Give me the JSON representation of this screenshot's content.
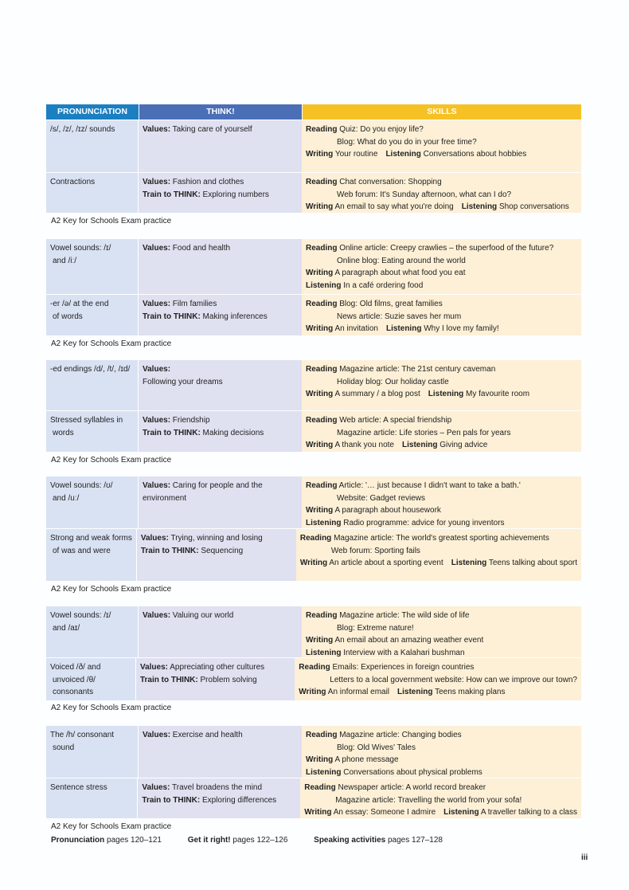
{
  "header": {
    "pronunciation": "PRONUNCIATION",
    "think": "THINK!",
    "skills": "SKILLS",
    "colors": {
      "pronunciation": "#1b7fc2",
      "think": "#4b6fb6",
      "skills": "#f5c125"
    }
  },
  "units": [
    {
      "rows": [
        {
          "pron": [
            "/s/, /z/, /ɪz/ sounds"
          ],
          "think": [
            [
              {
                "b": "Values:",
                "t": " Taking care of yourself"
              }
            ]
          ],
          "skills": [
            {
              "s": [
                {
                  "b": "Reading",
                  "t": " Quiz: Do you enjoy life?"
                }
              ]
            },
            {
              "ind": true,
              "s": [
                {
                  "t": "Blog: What do you do in your free time?"
                }
              ]
            },
            {
              "s": [
                {
                  "b": "Writing",
                  "t": " Your routine"
                },
                {
                  "b": "Listening",
                  "t": " Conversations about hobbies"
                }
              ]
            }
          ]
        },
        {
          "pron": [
            "Contractions"
          ],
          "think": [
            [
              {
                "b": "Values:",
                "t": " Fashion and clothes"
              }
            ],
            [
              {
                "b": "Train to THINK:",
                "t": " Exploring numbers"
              }
            ]
          ],
          "skills": [
            {
              "s": [
                {
                  "b": "Reading",
                  "t": " Chat conversation: Shopping"
                }
              ]
            },
            {
              "ind": true,
              "s": [
                {
                  "t": "Web forum: It's Sunday afternoon, what can I do?"
                }
              ]
            },
            {
              "s": [
                {
                  "b": "Writing",
                  "t": " An email to say what you're doing"
                },
                {
                  "b": "Listening",
                  "t": " Shop conversations"
                }
              ]
            }
          ]
        }
      ],
      "exam": "A2 Key for Schools Exam practice"
    },
    {
      "rows": [
        {
          "pron": [
            "Vowel sounds: /ɪ/",
            "and /iː/"
          ],
          "think": [
            [
              {
                "b": "Values:",
                "t": " Food and health"
              }
            ]
          ],
          "skills": [
            {
              "s": [
                {
                  "b": "Reading",
                  "t": " Online article: Creepy crawlies – the superfood of the future?"
                }
              ]
            },
            {
              "ind": true,
              "s": [
                {
                  "t": "Online blog: Eating around the world"
                }
              ]
            },
            {
              "s": [
                {
                  "b": "Writing",
                  "t": " A paragraph about what food you eat"
                }
              ]
            },
            {
              "s": [
                {
                  "b": "Listening",
                  "t": " In a café ordering food"
                }
              ]
            }
          ]
        },
        {
          "pron": [
            "-er /ə/ at the end",
            "of words"
          ],
          "think": [
            [
              {
                "b": "Values:",
                "t": " Film families"
              }
            ],
            [
              {
                "b": "Train to THINK:",
                "t": " Making inferences"
              }
            ]
          ],
          "skills": [
            {
              "s": [
                {
                  "b": "Reading",
                  "t": " Blog: Old films, great families"
                }
              ]
            },
            {
              "ind": true,
              "s": [
                {
                  "t": "News article: Suzie saves her mum"
                }
              ]
            },
            {
              "s": [
                {
                  "b": "Writing",
                  "t": " An invitation"
                },
                {
                  "b": "Listening",
                  "t": " Why I love my family!"
                }
              ]
            }
          ]
        }
      ],
      "exam": "A2 Key for Schools Exam practice"
    },
    {
      "rows": [
        {
          "pron": [
            "-ed endings /d/, /t/, /ɪd/"
          ],
          "think": [
            [
              {
                "b": "Values:",
                "t": ""
              }
            ],
            [
              {
                "t": "Following your dreams"
              }
            ]
          ],
          "skills": [
            {
              "s": [
                {
                  "b": "Reading",
                  "t": " Magazine article: The 21st century caveman"
                }
              ]
            },
            {
              "ind": true,
              "s": [
                {
                  "t": "Holiday blog: Our holiday castle"
                }
              ]
            },
            {
              "s": [
                {
                  "b": "Writing",
                  "t": " A summary / a blog post"
                },
                {
                  "b": "Listening",
                  "t": " My favourite room"
                }
              ]
            }
          ]
        },
        {
          "pron": [
            "Stressed syllables in",
            "words"
          ],
          "think": [
            [
              {
                "b": "Values:",
                "t": " Friendship"
              }
            ],
            [
              {
                "b": "Train to THINK:",
                "t": " Making decisions"
              }
            ]
          ],
          "skills": [
            {
              "s": [
                {
                  "b": "Reading",
                  "t": " Web article: A special friendship"
                }
              ]
            },
            {
              "ind": true,
              "s": [
                {
                  "t": "Magazine article: Life stories – Pen pals for years"
                }
              ]
            },
            {
              "s": [
                {
                  "b": "Writing",
                  "t": " A thank you note"
                },
                {
                  "b": "Listening",
                  "t": " Giving advice"
                }
              ]
            }
          ]
        }
      ],
      "exam": "A2 Key for Schools Exam practice"
    },
    {
      "rows": [
        {
          "pron": [
            "Vowel sounds: /ʊ/",
            "and /uː/"
          ],
          "think": [
            [
              {
                "b": "Values:",
                "t": " Caring for people and the"
              }
            ],
            [
              {
                "t": " environment"
              }
            ]
          ],
          "skills": [
            {
              "s": [
                {
                  "b": "Reading",
                  "t": " Article: '… just because I didn't want to take a bath.'"
                }
              ]
            },
            {
              "ind": true,
              "s": [
                {
                  "t": "Website: Gadget reviews"
                }
              ]
            },
            {
              "s": [
                {
                  "b": "Writing",
                  "t": " A paragraph about housework"
                }
              ]
            },
            {
              "s": [
                {
                  "b": "Listening",
                  "t": " Radio programme: advice for young inventors"
                }
              ]
            }
          ]
        },
        {
          "pron": [
            "Strong and weak forms",
            "of was and were"
          ],
          "think": [
            [
              {
                "b": "Values:",
                "t": " Trying, winning and losing"
              }
            ],
            [
              {
                "b": "Train to THINK:",
                "t": " Sequencing"
              }
            ]
          ],
          "skills": [
            {
              "s": [
                {
                  "b": "Reading",
                  "t": " Magazine article: The world's greatest sporting achievements"
                }
              ]
            },
            {
              "ind": true,
              "s": [
                {
                  "t": "Web forum: Sporting fails"
                }
              ]
            },
            {
              "s": [
                {
                  "b": "Writing",
                  "t": " An article about a sporting event"
                },
                {
                  "b": "Listening",
                  "t": " Teens talking about sport"
                }
              ]
            }
          ]
        }
      ],
      "exam": "A2 Key for Schools Exam practice"
    },
    {
      "rows": [
        {
          "pron": [
            "Vowel sounds: /ɪ/",
            "and /aɪ/"
          ],
          "think": [
            [
              {
                "b": "Values:",
                "t": " Valuing our world"
              }
            ]
          ],
          "skills": [
            {
              "s": [
                {
                  "b": "Reading",
                  "t": " Magazine article: The wild side of life"
                }
              ]
            },
            {
              "ind": true,
              "s": [
                {
                  "t": "Blog: Extreme nature!"
                }
              ]
            },
            {
              "s": [
                {
                  "b": "Writing",
                  "t": " An email about an amazing weather event"
                }
              ]
            },
            {
              "s": [
                {
                  "b": "Listening",
                  "t": " Interview with a Kalahari bushman"
                }
              ]
            }
          ]
        },
        {
          "pron": [
            "Voiced /ð/ and",
            "unvoiced /θ/",
            "consonants"
          ],
          "think": [
            [
              {
                "b": "Values:",
                "t": " Appreciating other cultures"
              }
            ],
            [
              {
                "b": "Train to THINK:",
                "t": " Problem solving"
              }
            ]
          ],
          "skills": [
            {
              "s": [
                {
                  "b": "Reading",
                  "t": " Emails: Experiences in foreign countries"
                }
              ]
            },
            {
              "ind": true,
              "s": [
                {
                  "t": "Letters to a local government website: How can we improve our town?"
                }
              ]
            },
            {
              "s": [
                {
                  "b": "Writing",
                  "t": " An informal email"
                },
                {
                  "b": "Listening",
                  "t": " Teens making plans"
                }
              ]
            }
          ]
        }
      ],
      "exam": "A2 Key for Schools Exam practice"
    },
    {
      "rows": [
        {
          "pron": [
            "The /h/ consonant",
            "sound"
          ],
          "think": [
            [
              {
                "b": "Values:",
                "t": " Exercise and health"
              }
            ]
          ],
          "skills": [
            {
              "s": [
                {
                  "b": "Reading",
                  "t": " Magazine article: Changing bodies"
                }
              ]
            },
            {
              "ind": true,
              "s": [
                {
                  "t": "Blog: Old Wives' Tales"
                }
              ]
            },
            {
              "s": [
                {
                  "b": "Writing",
                  "t": " A phone message"
                }
              ]
            },
            {
              "s": [
                {
                  "b": "Listening",
                  "t": " Conversations about physical problems"
                }
              ]
            }
          ]
        },
        {
          "pron": [
            "Sentence stress"
          ],
          "think": [
            [
              {
                "b": "Values:",
                "t": " Travel broadens the mind"
              }
            ],
            [
              {
                "b": "Train to THINK:",
                "t": " Exploring differences"
              }
            ]
          ],
          "skills": [
            {
              "s": [
                {
                  "b": "Reading",
                  "t": " Newspaper article: A world record breaker"
                }
              ]
            },
            {
              "ind": true,
              "s": [
                {
                  "t": "Magazine article: Travelling the world from your sofa!"
                }
              ]
            },
            {
              "s": [
                {
                  "b": "Writing",
                  "t": " An essay: Someone I admire"
                },
                {
                  "b": "Listening",
                  "t": " A traveller talking to a class"
                }
              ]
            }
          ]
        }
      ],
      "exam": "A2 Key for Schools Exam practice"
    }
  ],
  "footer": [
    {
      "b": "Pronunciation",
      "t": " pages 120–121"
    },
    {
      "b": "Get it right!",
      "t": " pages 122–126"
    },
    {
      "b": "Speaking activities",
      "t": " pages 127–128"
    }
  ],
  "page_number": "iii"
}
